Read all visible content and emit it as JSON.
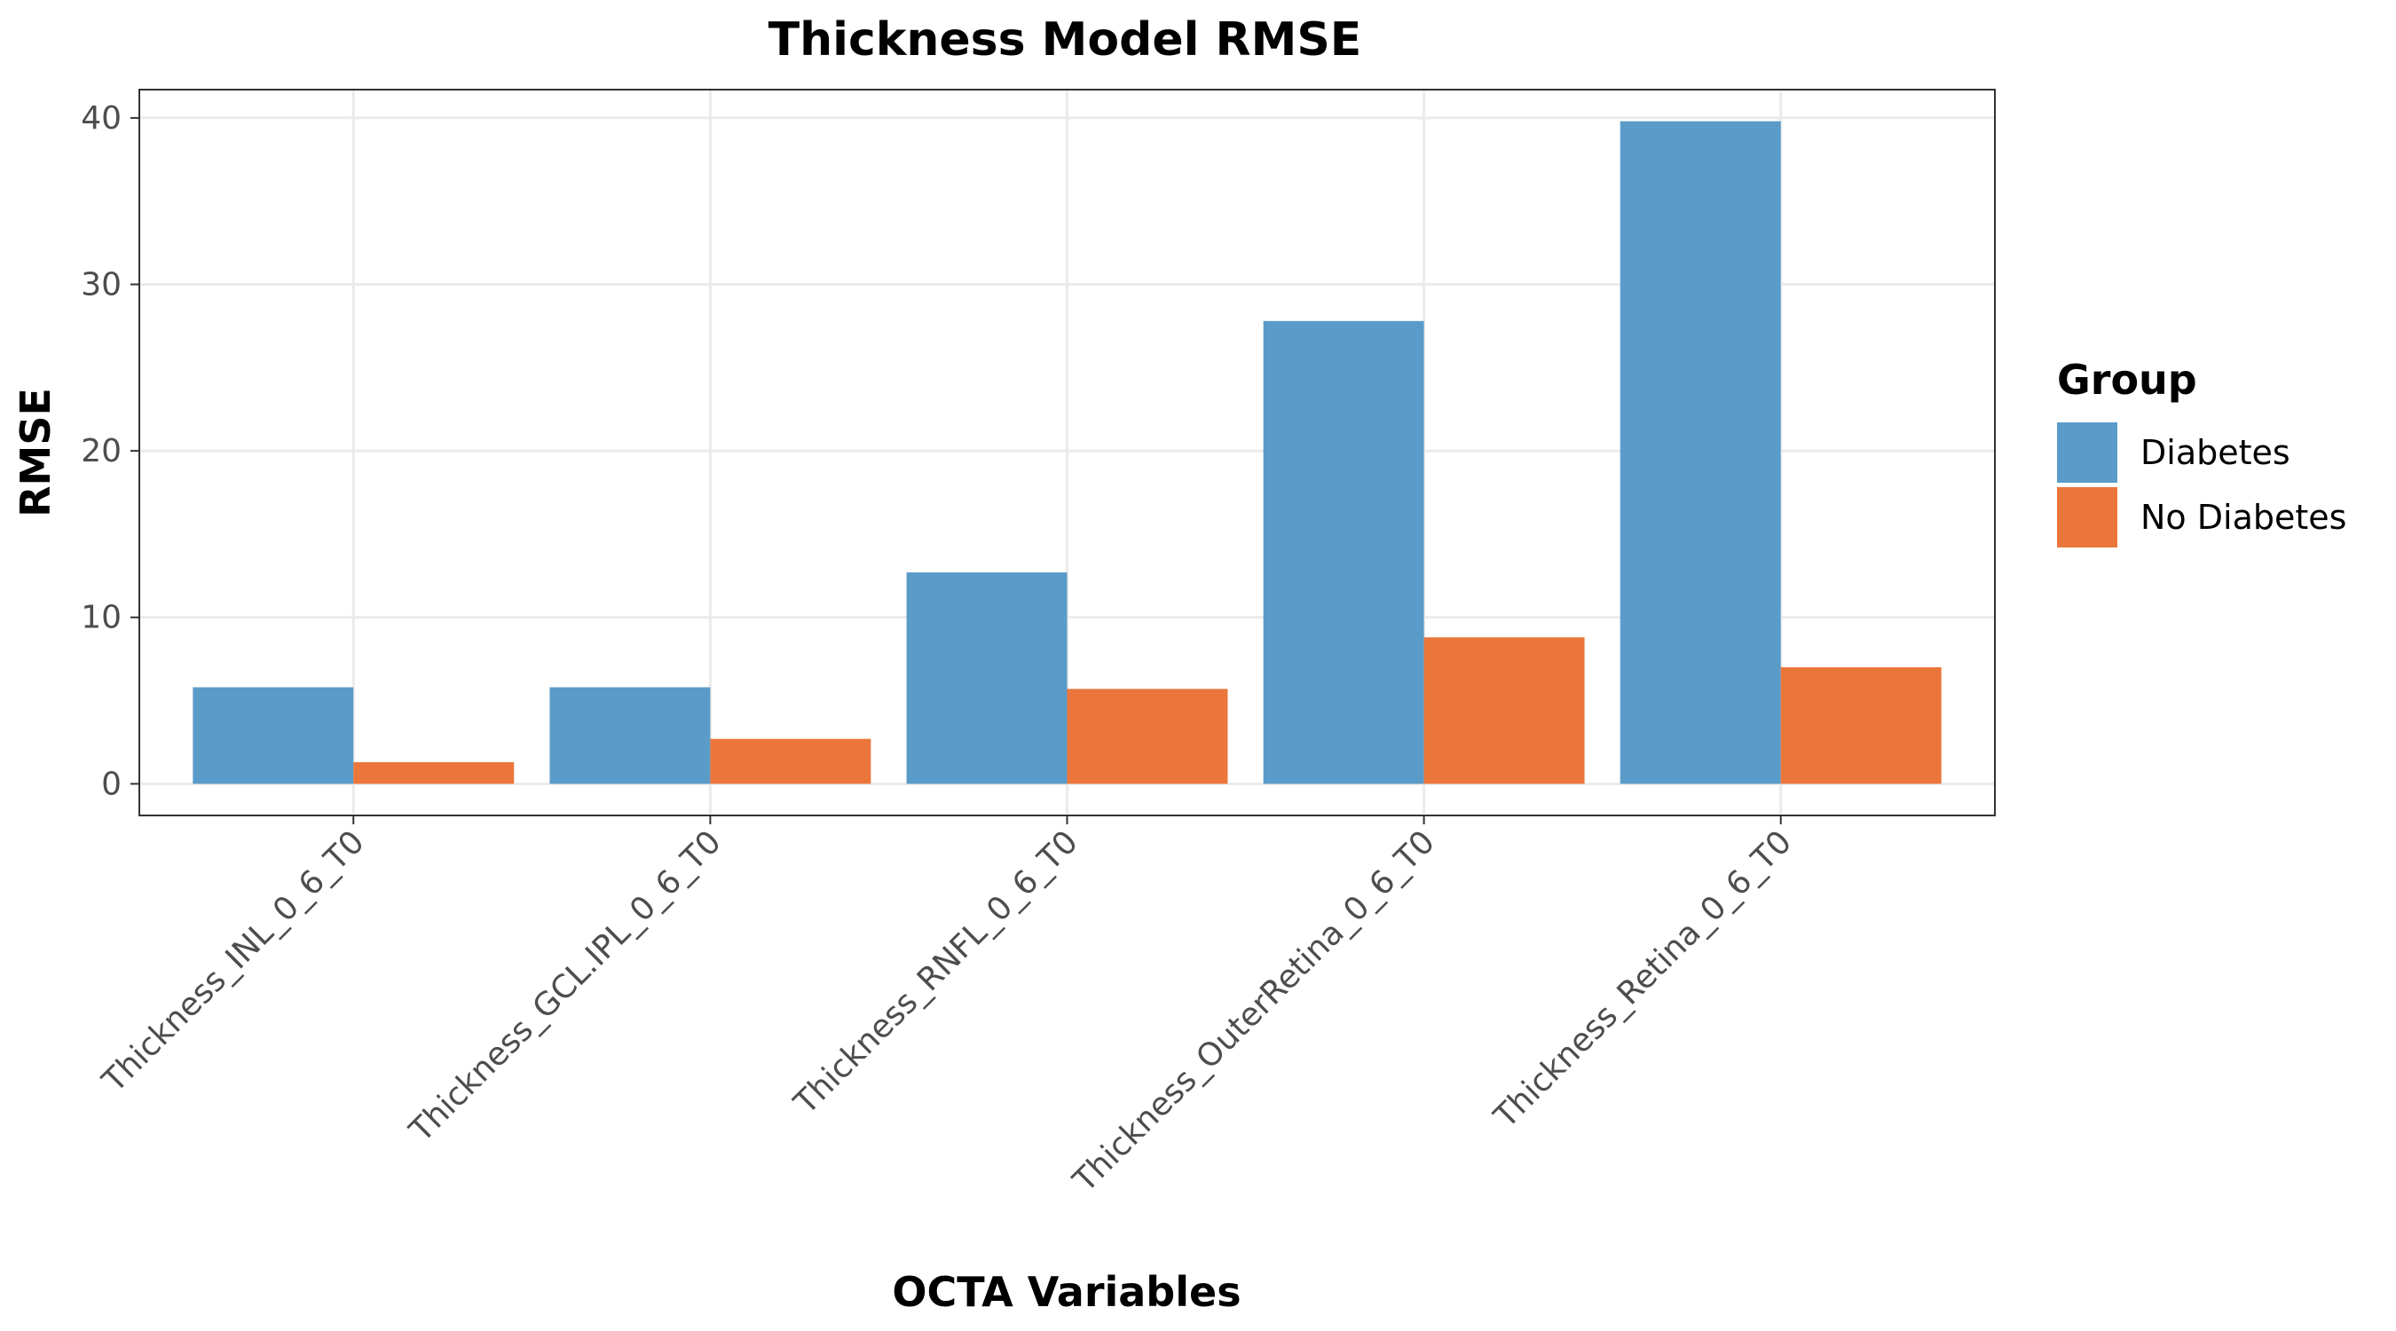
{
  "chart_data": {
    "type": "bar",
    "title": "Thickness Model RMSE",
    "xlabel": "OCTA Variables",
    "ylabel": "RMSE",
    "categories": [
      "Thickness_INL_0_6_T0",
      "Thickness_GCL.IPL_0_6_T0",
      "Thickness_RNFL_0_6_T0",
      "Thickness_OuterRetina_0_6_T0",
      "Thickness_Retina_0_6_T0"
    ],
    "series": [
      {
        "name": "Diabetes",
        "color": "#5a9bc9",
        "values": [
          5.8,
          5.8,
          12.7,
          27.8,
          39.8
        ]
      },
      {
        "name": "No Diabetes",
        "color": "#eb763b",
        "values": [
          1.3,
          2.7,
          5.7,
          8.8,
          7.0
        ]
      }
    ],
    "ylim": [
      -1.9,
      41.7
    ],
    "yticks": [
      0,
      10,
      20,
      30,
      40
    ],
    "grid": true,
    "legend": {
      "title": "Group",
      "placement": "right"
    }
  }
}
